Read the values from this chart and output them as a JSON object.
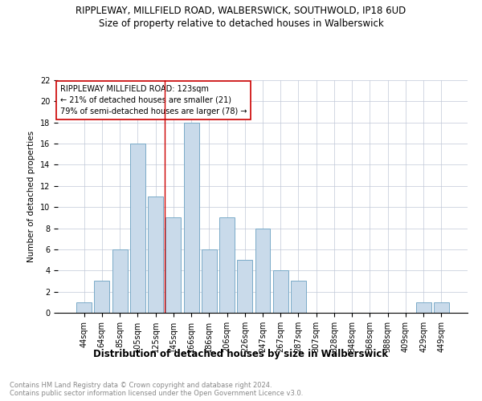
{
  "title": "RIPPLEWAY, MILLFIELD ROAD, WALBERSWICK, SOUTHWOLD, IP18 6UD",
  "subtitle": "Size of property relative to detached houses in Walberswick",
  "xlabel": "Distribution of detached houses by size in Walberswick",
  "ylabel": "Number of detached properties",
  "footer": "Contains HM Land Registry data © Crown copyright and database right 2024.\nContains public sector information licensed under the Open Government Licence v3.0.",
  "categories": [
    "44sqm",
    "64sqm",
    "85sqm",
    "105sqm",
    "125sqm",
    "145sqm",
    "166sqm",
    "186sqm",
    "206sqm",
    "226sqm",
    "247sqm",
    "267sqm",
    "287sqm",
    "307sqm",
    "328sqm",
    "348sqm",
    "368sqm",
    "388sqm",
    "409sqm",
    "429sqm",
    "449sqm"
  ],
  "values": [
    1,
    3,
    6,
    16,
    11,
    9,
    18,
    6,
    9,
    5,
    8,
    4,
    3,
    0,
    0,
    0,
    0,
    0,
    0,
    1,
    1
  ],
  "bar_color": "#c9daea",
  "bar_edge_color": "#7aaac8",
  "annotation_box_text": "RIPPLEWAY MILLFIELD ROAD: 123sqm\n← 21% of detached houses are smaller (21)\n79% of semi-detached houses are larger (78) →",
  "annotation_box_edge_color": "#cc0000",
  "vline_x": 4.5,
  "vline_color": "#cc0000",
  "ylim": [
    0,
    22
  ],
  "yticks": [
    0,
    2,
    4,
    6,
    8,
    10,
    12,
    14,
    16,
    18,
    20,
    22
  ],
  "grid_color": "#c0c8d8",
  "title_fontsize": 8.5,
  "subtitle_fontsize": 8.5,
  "xlabel_fontsize": 8.5,
  "ylabel_fontsize": 7.5,
  "tick_fontsize": 7,
  "annotation_fontsize": 7,
  "footer_fontsize": 6
}
